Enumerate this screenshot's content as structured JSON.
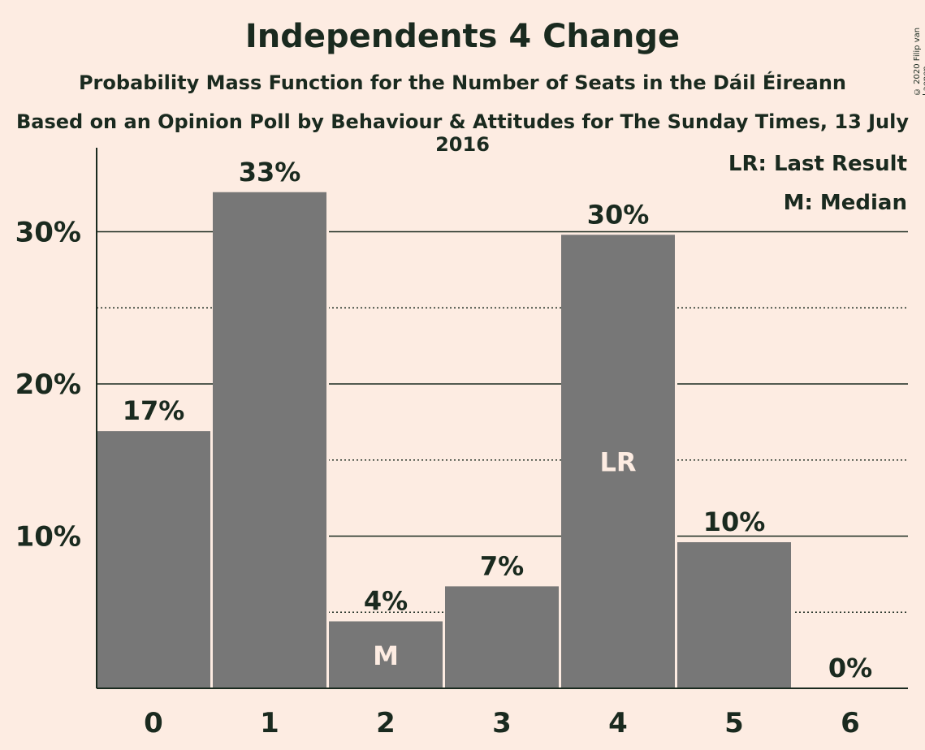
{
  "chart_data": {
    "type": "bar",
    "title": "Independents 4 Change",
    "subtitle": "Probability Mass Function for the Number of Seats in the Dáil Éireann",
    "source": "Based on an Opinion Poll by Behaviour & Attitudes for The Sunday Times, 13 July 2016",
    "copyright": "© 2020 Filip van Laenen",
    "categories": [
      "0",
      "1",
      "2",
      "3",
      "4",
      "5",
      "6"
    ],
    "values": [
      16.9,
      32.6,
      4.4,
      6.7,
      29.8,
      9.6,
      0
    ],
    "value_labels": [
      "17%",
      "33%",
      "4%",
      "7%",
      "30%",
      "10%",
      "0%"
    ],
    "bar_markers": [
      "",
      "",
      "M",
      "",
      "LR",
      "",
      ""
    ],
    "y_ticks": [
      10,
      20,
      30
    ],
    "y_tick_labels": [
      "10%",
      "20%",
      "30%"
    ],
    "y_minor_ticks": [
      5,
      15,
      25
    ],
    "ylim": [
      0,
      35.5
    ],
    "legend": [
      "LR: Last Result",
      "M: Median"
    ],
    "legend_position": "top-right",
    "colors": {
      "background": "#fdece2",
      "bar": "#777777",
      "text": "#1a2a1f",
      "marker_text": "#fdece2"
    }
  }
}
